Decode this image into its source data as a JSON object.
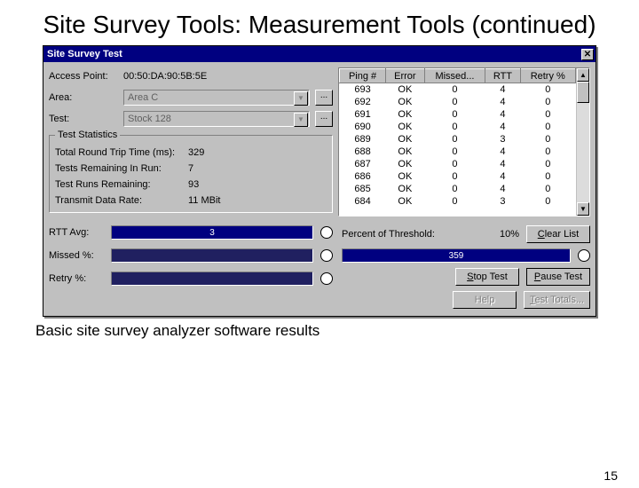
{
  "slide": {
    "title": "Site Survey Tools: Measurement Tools (continued)",
    "caption": "Basic site survey analyzer software results",
    "page": "15"
  },
  "window": {
    "title": "Site Survey Test",
    "close_glyph": "✕"
  },
  "form": {
    "ap_label": "Access Point:",
    "ap_value": "00:50:DA:90:5B:5E",
    "area_label": "Area:",
    "area_value": "Area C",
    "test_label": "Test:",
    "test_value": "Stock 128",
    "ellipsis": "...",
    "dd_arrow": "▼"
  },
  "stats": {
    "legend": "Test Statistics",
    "rows": [
      {
        "k": "Total Round Trip Time (ms):",
        "v": "329"
      },
      {
        "k": "Tests Remaining In Run:",
        "v": "7"
      },
      {
        "k": "Test Runs Remaining:",
        "v": "93"
      },
      {
        "k": "Transmit Data Rate:",
        "v": "11 MBit"
      }
    ]
  },
  "table": {
    "headers": [
      "Ping #",
      "Error",
      "Missed...",
      "RTT",
      "Retry %"
    ],
    "rows": [
      [
        "693",
        "OK",
        "0",
        "4",
        "0"
      ],
      [
        "692",
        "OK",
        "0",
        "4",
        "0"
      ],
      [
        "691",
        "OK",
        "0",
        "4",
        "0"
      ],
      [
        "690",
        "OK",
        "0",
        "4",
        "0"
      ],
      [
        "689",
        "OK",
        "0",
        "3",
        "0"
      ],
      [
        "688",
        "OK",
        "0",
        "4",
        "0"
      ],
      [
        "687",
        "OK",
        "0",
        "4",
        "0"
      ],
      [
        "686",
        "OK",
        "0",
        "4",
        "0"
      ],
      [
        "685",
        "OK",
        "0",
        "4",
        "0"
      ],
      [
        "684",
        "OK",
        "0",
        "3",
        "0"
      ]
    ],
    "scroll_up": "▲",
    "scroll_down": "▼"
  },
  "metrics": {
    "rtt_label": "RTT Avg:",
    "rtt_value": "3",
    "missed_label": "Missed %:",
    "missed_value": "",
    "retry_label": "Retry %:",
    "retry_value": ""
  },
  "threshold": {
    "label": "Percent of Threshold:",
    "value": "10%",
    "progress": "359"
  },
  "buttons": {
    "clear": "Clear List",
    "clear_u": "C",
    "stop": "Stop Test",
    "stop_u": "S",
    "pause": "Pause Test",
    "pause_u": "P",
    "help": "Help",
    "totals": "Test Totals...",
    "totals_u": "T"
  },
  "colors": {
    "win_bg": "#c0c0c0",
    "titlebar_bg": "#000080",
    "bar_bg": "#000080"
  }
}
